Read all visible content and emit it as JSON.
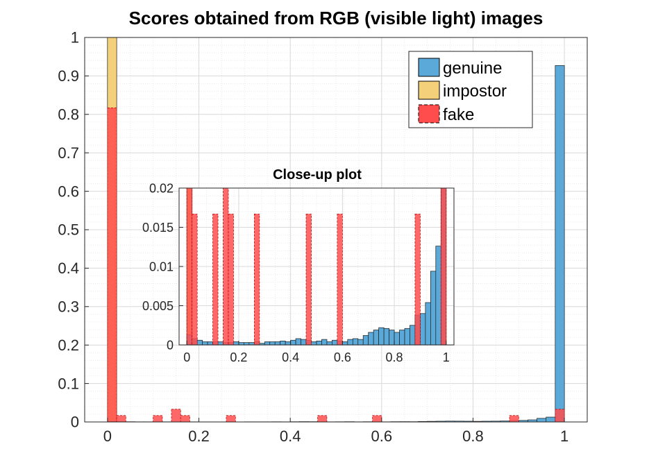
{
  "chart_data": {
    "type": "bar",
    "title": "Scores obtained from RGB (visible light) images",
    "bin_width": 0.0202,
    "xlim": [
      -0.05,
      1.05
    ],
    "ylim": [
      0,
      1
    ],
    "xticks": [
      "0",
      "0.2",
      "0.4",
      "0.6",
      "0.8",
      "1"
    ],
    "yticks": [
      "0",
      "0.1",
      "0.2",
      "0.3",
      "0.4",
      "0.5",
      "0.6",
      "0.7",
      "0.8",
      "0.9",
      "1"
    ],
    "grid": true,
    "legend_position": "top-right",
    "legend": [
      "genuine",
      "impostor",
      "fake"
    ],
    "colors": {
      "genuine": "#5aa9d8",
      "impostor": "#f4d07a",
      "fake": "#ff4d4d"
    },
    "series": [
      {
        "name": "genuine",
        "x": [
          0.01,
          0.03,
          0.05,
          0.07,
          0.09,
          0.11,
          0.13,
          0.15,
          0.17,
          0.19,
          0.21,
          0.23,
          0.25,
          0.27,
          0.29,
          0.31,
          0.33,
          0.35,
          0.37,
          0.39,
          0.41,
          0.43,
          0.45,
          0.47,
          0.49,
          0.51,
          0.53,
          0.55,
          0.57,
          0.59,
          0.61,
          0.63,
          0.65,
          0.67,
          0.69,
          0.71,
          0.73,
          0.75,
          0.77,
          0.79,
          0.81,
          0.83,
          0.85,
          0.87,
          0.89,
          0.91,
          0.93,
          0.95,
          0.97,
          0.99
        ],
        "values": [
          0.0013,
          0.0008,
          0.0006,
          0.0004,
          0.0004,
          0.0004,
          0.0004,
          0.0003,
          0.0003,
          0.0004,
          0.0003,
          0.0003,
          0.0003,
          0.0004,
          0.0002,
          0.0004,
          0.0004,
          0.0004,
          0.0005,
          0.0004,
          0.0006,
          0.0008,
          0.0007,
          0.0006,
          0.0004,
          0.0005,
          0.0007,
          0.0004,
          0.0006,
          0.0005,
          0.0004,
          0.0007,
          0.0008,
          0.0007,
          0.0012,
          0.0016,
          0.0019,
          0.0022,
          0.0021,
          0.0019,
          0.0016,
          0.0019,
          0.0021,
          0.0025,
          0.0038,
          0.004,
          0.0054,
          0.0094,
          0.0126,
          0.927
        ]
      },
      {
        "name": "impostor",
        "x": [
          0.01
        ],
        "values": [
          1.0
        ]
      },
      {
        "name": "fake",
        "x": [
          0.01,
          0.03,
          0.11,
          0.15,
          0.17,
          0.27,
          0.47,
          0.59,
          0.89,
          0.99
        ],
        "values": [
          0.817,
          0.0167,
          0.0167,
          0.0333,
          0.0167,
          0.0167,
          0.0167,
          0.0167,
          0.0167,
          0.0333
        ]
      }
    ],
    "inset": {
      "title": "Close-up plot",
      "xlim": [
        -0.03,
        1.03
      ],
      "ylim": [
        0,
        0.02
      ],
      "xticks": [
        "0",
        "0.2",
        "0.4",
        "0.6",
        "0.8",
        "1"
      ],
      "yticks": [
        "0",
        "0.005",
        "0.01",
        "0.015",
        "0.02"
      ]
    }
  }
}
